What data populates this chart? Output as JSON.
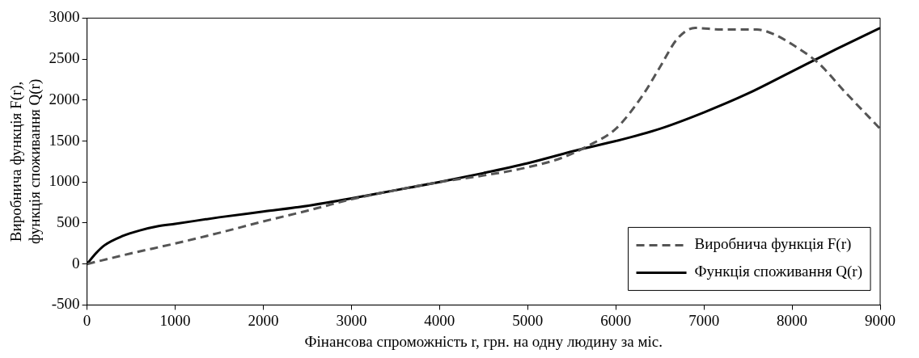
{
  "chart_data": {
    "type": "line",
    "xlabel": "Фінансова спроможність r, грн. на одну людину за міс.",
    "ylabel": "Виробнича функція F(r),\nфункція споживання Q(r)",
    "xlim": [
      0,
      9000
    ],
    "xticks": [
      0,
      1000,
      2000,
      3000,
      4000,
      5000,
      6000,
      7000,
      8000,
      9000
    ],
    "ylim": [
      -500,
      3000
    ],
    "yticks": [
      -500,
      0,
      500,
      1000,
      1500,
      2000,
      2500,
      3000
    ],
    "legend": "bottom right",
    "series": [
      {
        "name": "Виробнича функція F(r)",
        "color": "#555555",
        "line_style": "dashed",
        "x": [
          0,
          500,
          1000,
          1500,
          2000,
          2500,
          3000,
          3500,
          4000,
          4500,
          5000,
          5400,
          5700,
          6000,
          6300,
          6500,
          6700,
          6900,
          7200,
          7600,
          7800,
          8000,
          8300,
          8600,
          9000
        ],
        "values": [
          0,
          130,
          250,
          380,
          520,
          650,
          790,
          900,
          1000,
          1080,
          1180,
          1300,
          1450,
          1650,
          2050,
          2400,
          2750,
          2880,
          2860,
          2860,
          2800,
          2680,
          2450,
          2100,
          1650
        ]
      },
      {
        "name": "Функція споживання Q(r)",
        "color": "#000000",
        "line_style": "solid",
        "x": [
          0,
          100,
          200,
          400,
          600,
          800,
          1000,
          1500,
          2000,
          2500,
          3000,
          3500,
          4000,
          4500,
          5000,
          5600,
          6000,
          6500,
          7000,
          7500,
          8000,
          8500,
          9000
        ],
        "values": [
          0,
          130,
          230,
          340,
          410,
          460,
          490,
          570,
          640,
          710,
          800,
          900,
          1000,
          1110,
          1230,
          1400,
          1500,
          1650,
          1850,
          2080,
          2350,
          2620,
          2880
        ]
      }
    ]
  }
}
